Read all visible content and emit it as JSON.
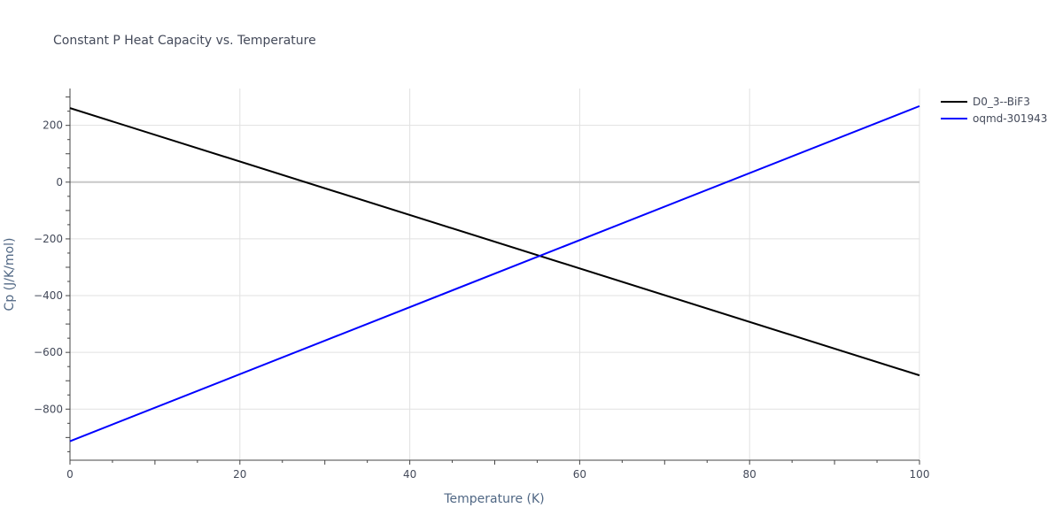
{
  "chart_data": {
    "type": "line",
    "title": "Constant P Heat Capacity vs. Temperature",
    "xlabel": "Temperature (K)",
    "ylabel": "Cp (J/K/mol)",
    "xlim": [
      0,
      100
    ],
    "ylim": [
      -980,
      330
    ],
    "x_ticks": [
      0,
      20,
      40,
      60,
      80,
      100
    ],
    "y_ticks": [
      -800,
      -600,
      -400,
      -200,
      0,
      200
    ],
    "grid": true,
    "legend_position": "top-right",
    "series": [
      {
        "name": "D0_3--BiF3",
        "color": "#000000",
        "x": [
          0,
          100
        ],
        "y": [
          261,
          -681
        ]
      },
      {
        "name": "oqmd-301943",
        "color": "#0000ff",
        "x": [
          0,
          100
        ],
        "y": [
          -913,
          268
        ]
      }
    ]
  }
}
